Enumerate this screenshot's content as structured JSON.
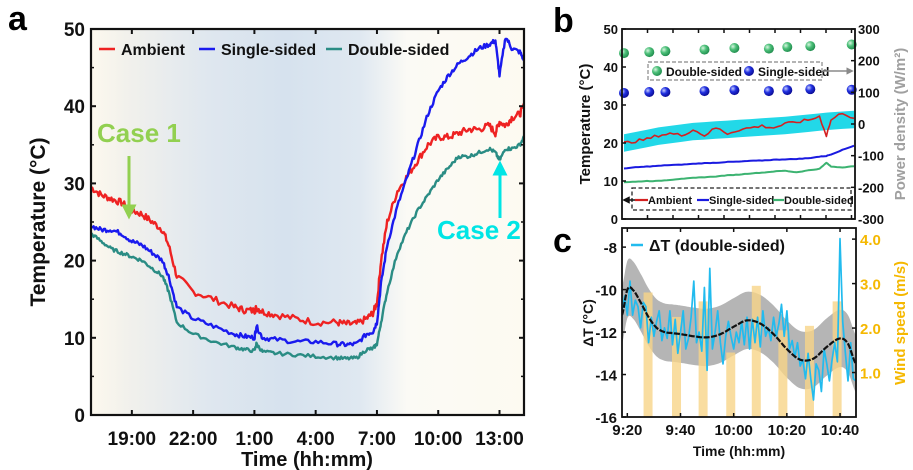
{
  "figure": {
    "panel_labels": [
      "a",
      "b",
      "c"
    ]
  },
  "chart_data": [
    {
      "panel": "a",
      "type": "line",
      "title": "",
      "xlabel": "Time (hh:mm)",
      "ylabel": "Temperature (°C)",
      "x_unit": "hours since 17:00",
      "xlim": [
        0,
        21.2
      ],
      "ylim": [
        0,
        50
      ],
      "yticks": [
        0,
        10,
        20,
        30,
        40,
        50
      ],
      "xticks": [
        {
          "x": 2,
          "label": "19:00"
        },
        {
          "x": 5,
          "label": "22:00"
        },
        {
          "x": 8,
          "label": "1:00"
        },
        {
          "x": 11,
          "label": "4:00"
        },
        {
          "x": 14,
          "label": "7:00"
        },
        {
          "x": 17,
          "label": "10:00"
        },
        {
          "x": 20,
          "label": "13:00"
        }
      ],
      "background": "night period shaded blue between ~18:00 and ~8:30",
      "legend": {
        "placement": "top",
        "entries": [
          "Ambient",
          "Single-sided",
          "Double-sided"
        ]
      },
      "annotations": [
        {
          "text": "Case 1",
          "x": 1.9,
          "arrow_to_y": 27,
          "color": "#92d050"
        },
        {
          "text": "Case 2",
          "x": 20,
          "arrow_to_y": 34,
          "color": "#00e5e5"
        }
      ],
      "x": [
        0,
        0.5,
        1,
        1.5,
        2,
        2.5,
        3,
        3.5,
        3.8,
        4.2,
        5,
        6,
        7,
        7.5,
        8,
        8.1,
        8.4,
        9,
        10,
        11,
        12,
        12.5,
        13,
        13.5,
        13.8,
        14,
        14.2,
        14.5,
        15,
        15.5,
        16,
        16.5,
        17,
        17.5,
        18,
        18.5,
        19,
        19.5,
        19.8,
        20,
        20.3,
        20.6,
        21,
        21.2
      ],
      "series": [
        {
          "name": "Ambient",
          "color": "#ee2222",
          "values": [
            29.5,
            28.5,
            28,
            27.5,
            26.5,
            26,
            25,
            24,
            22,
            18,
            16,
            15,
            14,
            13.6,
            13.5,
            13.9,
            13.4,
            13,
            12.5,
            12,
            12,
            11.8,
            11.8,
            12.5,
            13.2,
            14.5,
            20,
            25,
            29,
            31,
            33,
            35,
            36,
            36,
            36.5,
            37,
            37,
            37.5,
            36.5,
            38,
            37.5,
            38.5,
            39,
            40
          ]
        },
        {
          "name": "Single-sided",
          "color": "#1a1aee",
          "values": [
            24.5,
            24,
            24,
            23.5,
            22.5,
            22,
            21,
            20,
            18,
            14,
            12.5,
            11.5,
            10.5,
            10.2,
            10,
            11.5,
            10,
            9.8,
            9.5,
            9.5,
            9.2,
            9.1,
            9.2,
            10.5,
            10.8,
            12,
            17,
            22,
            27,
            31,
            35,
            39,
            42,
            44,
            45.5,
            46.5,
            47.5,
            48,
            48.5,
            44,
            49,
            47.5,
            47,
            46
          ]
        },
        {
          "name": "Double-sided",
          "color": "#2a8c84",
          "values": [
            23.5,
            22.5,
            21.5,
            21,
            20.5,
            20,
            19,
            18,
            16,
            12,
            10.5,
            9.5,
            8.8,
            8.5,
            8.3,
            9.2,
            8.2,
            8,
            7.8,
            7.6,
            7.4,
            7.3,
            7.4,
            8.5,
            8.6,
            9.2,
            12,
            16,
            21,
            24,
            26.5,
            28.5,
            30.5,
            32,
            33.5,
            33.5,
            34,
            34.5,
            34,
            33,
            34.5,
            34.5,
            35,
            36
          ]
        }
      ]
    },
    {
      "panel": "b",
      "type": "line",
      "title": "",
      "xlabel": "",
      "ylabel": "Temperature (°C)",
      "ylabel_right": "Power density (W/m²)",
      "ylim": [
        0,
        50
      ],
      "ylim_right": [
        -300,
        300
      ],
      "yticks": [
        0,
        10,
        20,
        30,
        40,
        50
      ],
      "yticks_right": [
        -300,
        -200,
        -100,
        0,
        100,
        200,
        300
      ],
      "xlim": [
        0,
        1
      ],
      "legend_lines": {
        "placement": "bottom",
        "entries": [
          "Ambient",
          "Single-sided",
          "Double-sided"
        ],
        "axis": "left"
      },
      "legend_points": {
        "placement": "top",
        "entries": [
          "Double-sided",
          "Single-sided"
        ],
        "axis": "right"
      },
      "x": [
        0,
        0.05,
        0.1,
        0.15,
        0.2,
        0.25,
        0.3,
        0.35,
        0.4,
        0.45,
        0.5,
        0.55,
        0.6,
        0.65,
        0.7,
        0.75,
        0.8,
        0.85,
        0.88,
        0.9,
        0.95,
        1.0
      ],
      "series": [
        {
          "name": "Ambient",
          "color": "#d42020",
          "values": [
            20,
            20.5,
            21,
            22,
            22.5,
            22,
            23.5,
            22,
            24,
            22.5,
            23.5,
            24,
            24.5,
            24,
            25,
            25.5,
            26,
            27,
            22,
            26,
            28,
            26.5
          ]
        },
        {
          "name": "Single-sided",
          "color": "#1a1ae0",
          "values": [
            13.3,
            13.6,
            13.8,
            14,
            14.2,
            14.3,
            14.5,
            14.7,
            14.8,
            15,
            15.1,
            15.3,
            15.4,
            15.6,
            15.7,
            15.8,
            16,
            16.4,
            16.6,
            17,
            18.2,
            19.3
          ]
        },
        {
          "name": "Double-sided",
          "color": "#3cb371",
          "values": [
            9.7,
            9.8,
            10,
            10,
            10.3,
            10.6,
            10.8,
            11,
            11.2,
            11.5,
            11.7,
            12,
            12.2,
            12.5,
            12.7,
            12.3,
            12.8,
            13.2,
            14.8,
            13.8,
            13.6,
            13.9
          ]
        },
        {
          "name": "Ambient band",
          "color": "#22d8e8",
          "values_center": [
            20,
            20.6,
            21.2,
            21.8,
            22.2,
            22.6,
            23,
            23.2,
            23.4,
            23.6,
            23.8,
            24,
            24.2,
            24.4,
            24.6,
            24.9,
            25.2,
            25.5,
            25.7,
            25.8,
            26,
            26.2
          ],
          "half_width": 2.3
        }
      ],
      "points": [
        {
          "name": "Double-sided",
          "color": "#3dbb6a",
          "x": [
            0.0,
            0.11,
            0.18,
            0.35,
            0.48,
            0.63,
            0.71,
            0.81,
            0.99
          ],
          "values": [
            224,
            227,
            230,
            235,
            240,
            238,
            243,
            246,
            251
          ]
        },
        {
          "name": "Single-sided",
          "color": "#1a1ad8",
          "x": [
            0.0,
            0.11,
            0.18,
            0.35,
            0.48,
            0.63,
            0.71,
            0.81,
            0.99
          ],
          "values": [
            98,
            101,
            101,
            104,
            107,
            104,
            107,
            110,
            108
          ]
        }
      ]
    },
    {
      "panel": "c",
      "type": "line",
      "title": "",
      "xlabel": "Time (hh:mm)",
      "ylabel": "ΔT (°C)",
      "ylabel_right": "Wind speed (m/s)",
      "x_unit": "minutes since 9:20",
      "xlim": [
        -2,
        86
      ],
      "ylim": [
        -16,
        -7.1
      ],
      "ylim_right": [
        0,
        4.25
      ],
      "yticks": [
        -16,
        -14,
        -12,
        -10,
        -8
      ],
      "yticks_right": [
        1.0,
        2.0,
        3.0,
        4.0
      ],
      "xticks": [
        {
          "x": 0,
          "label": "9:20"
        },
        {
          "x": 20,
          "label": "9:40"
        },
        {
          "x": 40,
          "label": "10:00"
        },
        {
          "x": 60,
          "label": "10:20"
        },
        {
          "x": 80,
          "label": "10:40"
        }
      ],
      "legend": {
        "placement": "top-left",
        "entries": [
          "ΔT (double-sided)"
        ]
      },
      "series": [
        {
          "name": "ΔT (double-sided)",
          "color": "#22bbee",
          "x": [
            -2,
            -1,
            0,
            1,
            2,
            3,
            4,
            5,
            6,
            7,
            8,
            9,
            10,
            11,
            12,
            13,
            14,
            15,
            16,
            17,
            18,
            19,
            20,
            21,
            22,
            23,
            24,
            25,
            26,
            27,
            28,
            29,
            30,
            31,
            32,
            33,
            34,
            35,
            36,
            37,
            38,
            39,
            40,
            41,
            42,
            43,
            44,
            45,
            46,
            47,
            48,
            49,
            50,
            51,
            52,
            53,
            54,
            55,
            56,
            57,
            58,
            59,
            60,
            61,
            62,
            63,
            64,
            65,
            66,
            67,
            68,
            69,
            70,
            71,
            72,
            73,
            74,
            75,
            76,
            77,
            78,
            79,
            80,
            81,
            82,
            83,
            84,
            85,
            86
          ],
          "values": [
            -11,
            -10.3,
            -11.2,
            -9.6,
            -11.2,
            -10.5,
            -10.8,
            -11.8,
            -10.6,
            -10.8,
            -12.5,
            -11.3,
            -12.2,
            -11.5,
            -11,
            -12.4,
            -11.8,
            -12.3,
            -11,
            -12.6,
            -11.4,
            -13,
            -12,
            -11,
            -12.8,
            -12.3,
            -11.3,
            -9.6,
            -12.5,
            -12,
            -12.9,
            -9.9,
            -13.8,
            -9,
            -12.8,
            -12,
            -11,
            -12.5,
            -13.5,
            -12.2,
            -11.5,
            -12.2,
            -12.8,
            -12,
            -12.5,
            -11.5,
            -12.6,
            -11.3,
            -12.8,
            -11.4,
            -12.5,
            -11.3,
            -12.7,
            -11,
            -12.2,
            -11.8,
            -12.4,
            -11.3,
            -12.2,
            -11.6,
            -10.7,
            -12.2,
            -11,
            -12.8,
            -12.4,
            -13.2,
            -12.5,
            -13.6,
            -13.3,
            -14.2,
            -13,
            -14.2,
            -15.2,
            -13.5,
            -13.8,
            -14.8,
            -12.8,
            -13.5,
            -14.3,
            -13.3,
            -12.5,
            -13.4,
            -7.6,
            -11.5,
            -13,
            -14.3,
            -12.5,
            -14.2,
            -14.3
          ]
        },
        {
          "name": "Fit",
          "color": "#111111",
          "x": [
            -2,
            0,
            2,
            5,
            8,
            11,
            14,
            17,
            20,
            25,
            30,
            35,
            40,
            45,
            50,
            55,
            60,
            65,
            70,
            75,
            80,
            83,
            86
          ],
          "values": [
            -11.2,
            -10.0,
            -10.0,
            -10.6,
            -11.3,
            -11.8,
            -12.0,
            -12.05,
            -12.1,
            -12.2,
            -12.25,
            -12.1,
            -11.75,
            -11.45,
            -11.6,
            -12.1,
            -12.8,
            -13.3,
            -13.25,
            -12.7,
            -12.3,
            -12.55,
            -13.5
          ]
        },
        {
          "name": "Confidence band",
          "color": "#a8a8a8",
          "half_width": 1.35
        }
      ],
      "bars": {
        "name": "Wind speed",
        "color": "#f7d488",
        "axis": "right",
        "x": [
          7.8,
          18.5,
          28.5,
          38.9,
          48.5,
          58.5,
          68.5,
          78.9
        ],
        "values": [
          2.8,
          2.25,
          2.6,
          1.45,
          2.95,
          1.95,
          2.05,
          2.6
        ]
      }
    }
  ]
}
